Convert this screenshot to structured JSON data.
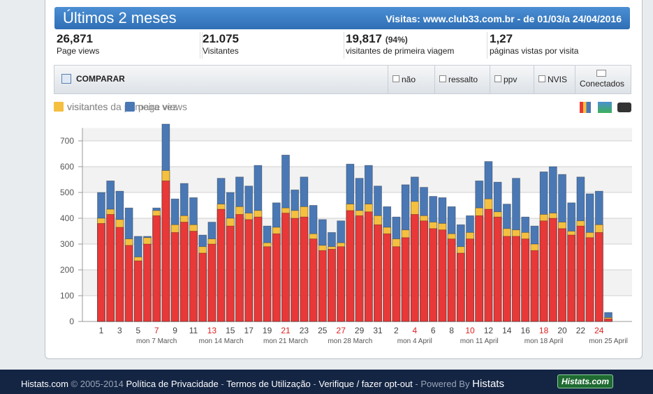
{
  "header": {
    "title": "Últimos 2 meses",
    "subtitle": "Visitas: www.club33.com.br - de 01/03/a 24/04/2016"
  },
  "stats": [
    {
      "value": "26,871",
      "label": "Page views"
    },
    {
      "value": "21.075",
      "label": "Visitantes"
    },
    {
      "value": "19,817",
      "extra": "(94%)",
      "label": "visitantes de primeira viagem"
    },
    {
      "value": "1,27",
      "label": "páginas vistas por visita"
    }
  ],
  "toolbar": {
    "compare": "COMPARAR",
    "options": [
      "não",
      "ressalto",
      "ppv",
      "NVIS"
    ],
    "connected": "Conectados"
  },
  "chart_data": {
    "type": "bar",
    "series": [
      {
        "name": "page views",
        "color": "#4a78b5",
        "values": [
          500,
          545,
          505,
          440,
          330,
          330,
          440,
          765,
          475,
          535,
          480,
          335,
          385,
          555,
          500,
          560,
          525,
          605,
          370,
          460,
          645,
          510,
          560,
          450,
          395,
          345,
          390,
          610,
          555,
          605,
          525,
          445,
          405,
          530,
          560,
          520,
          485,
          480,
          445,
          375,
          410,
          545,
          620,
          540,
          455,
          555,
          405,
          370,
          580,
          600,
          570,
          460,
          560,
          495,
          505,
          35
        ]
      },
      {
        "name": "visitantes",
        "color": "#f5c040",
        "values": [
          400,
          435,
          395,
          320,
          250,
          325,
          430,
          585,
          375,
          410,
          375,
          290,
          320,
          455,
          400,
          445,
          420,
          430,
          305,
          365,
          440,
          430,
          445,
          340,
          295,
          290,
          305,
          455,
          430,
          455,
          410,
          365,
          320,
          355,
          465,
          410,
          385,
          380,
          340,
          290,
          345,
          440,
          475,
          425,
          360,
          355,
          345,
          300,
          415,
          420,
          385,
          350,
          390,
          345,
          375,
          15
        ]
      },
      {
        "name": "visitantes da primeira vez",
        "color": "#e83838",
        "values": [
          380,
          415,
          365,
          295,
          235,
          300,
          410,
          545,
          345,
          385,
          350,
          265,
          300,
          435,
          370,
          415,
          395,
          405,
          290,
          340,
          420,
          400,
          405,
          320,
          275,
          280,
          290,
          430,
          410,
          425,
          375,
          340,
          290,
          325,
          415,
          390,
          360,
          355,
          320,
          265,
          320,
          410,
          435,
          405,
          330,
          330,
          320,
          275,
          390,
          400,
          360,
          335,
          370,
          325,
          345,
          10
        ]
      }
    ],
    "categories": [
      "1",
      null,
      "3",
      null,
      "5",
      null,
      "7",
      null,
      "9",
      null,
      "11",
      null,
      "13",
      null,
      "15",
      null,
      "17",
      null,
      "19",
      null,
      "21",
      null,
      "23",
      null,
      "25",
      null,
      "27",
      null,
      "29",
      null,
      "31",
      null,
      "2",
      null,
      "4",
      null,
      "6",
      null,
      "8",
      null,
      "10",
      null,
      "12",
      null,
      "14",
      null,
      "16",
      null,
      "18",
      null,
      "20",
      null,
      "22",
      null,
      "24",
      null
    ],
    "week_labels": [
      null,
      null,
      null,
      null,
      null,
      null,
      "mon 7 March",
      null,
      null,
      null,
      null,
      null,
      null,
      "mon 14 March",
      null,
      null,
      null,
      null,
      null,
      null,
      "mon 21 March",
      null,
      null,
      null,
      null,
      null,
      null,
      "mon 28 March",
      null,
      null,
      null,
      null,
      null,
      null,
      "mon 4 April",
      null,
      null,
      null,
      null,
      null,
      null,
      "mon 11 April",
      null,
      null,
      null,
      null,
      null,
      null,
      "mon 18 April",
      null,
      null,
      null,
      null,
      null,
      null,
      "mon 25 April"
    ],
    "highlight_categories": [
      "7",
      "13",
      "21",
      "27",
      "4",
      "10",
      "18",
      "24"
    ],
    "highlight_color": "#e02020",
    "ylim": [
      0,
      750
    ],
    "yticks": [
      0,
      100,
      200,
      300,
      400,
      500,
      600,
      700
    ],
    "grid": true
  },
  "footer": {
    "brand": "Histats.com",
    "copyright": "© 2005-2014",
    "links": [
      "Política de Privacidade",
      "Termos de Utilização",
      "Verifique / fazer opt-out"
    ],
    "powered": "Powered By",
    "powered_brand": "Histats",
    "logo": "Histats.com"
  }
}
